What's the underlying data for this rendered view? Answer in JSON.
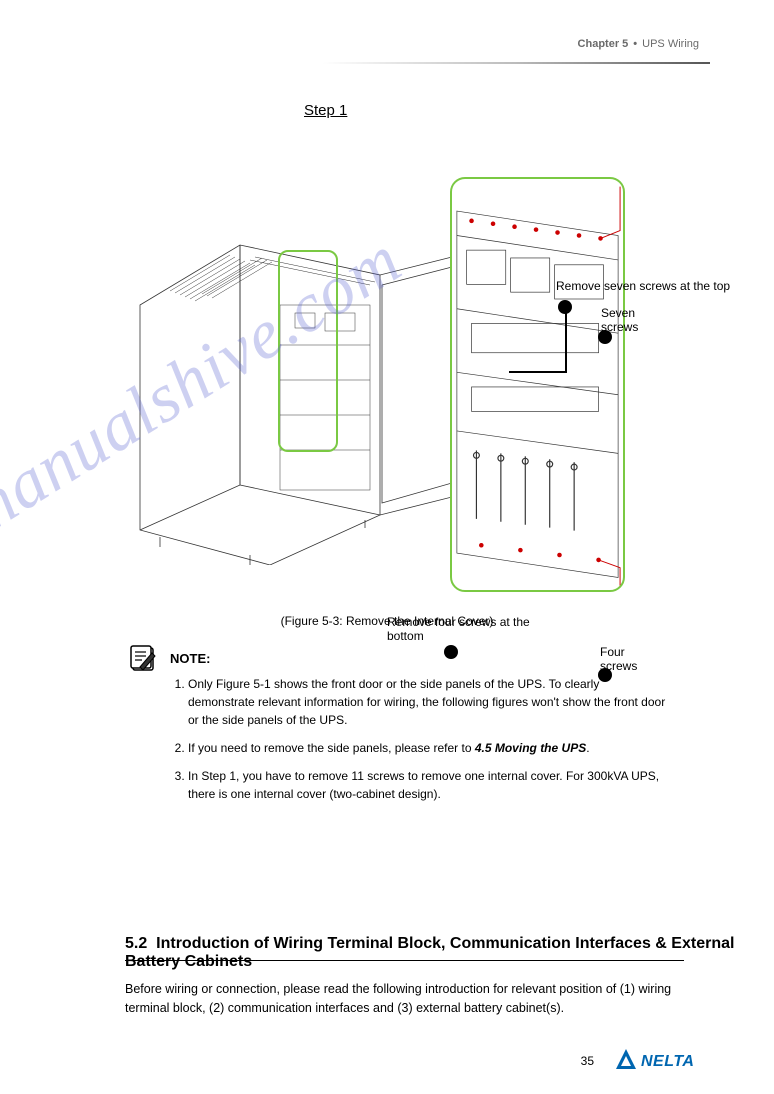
{
  "header": {
    "chapter_label": "Chapter 5",
    "chapter_title": "UPS Wiring"
  },
  "step1": {
    "title": "Step 1",
    "callouts": {
      "c1": "Remove seven screws at the top",
      "c2": "Seven screws",
      "c3": "Remove four screws at the bottom",
      "c4": "Four screws"
    },
    "figure_caption": "(Figure 5-3: Remove the Internal Cover)"
  },
  "note": {
    "label": "NOTE:",
    "items": [
      "Only Figure 5-1 shows the front door or the side panels of the UPS. To clearly demonstrate relevant information for wiring, the following figures won't show the front door or the side panels of the UPS.",
      "If you need to remove the side panels, please refer to <span class='bold-i'>4.5 Moving the UPS</span>.",
      "In Step 1, you have to remove 11 screws to remove one internal cover. For 300kVA UPS, there is one internal cover (two-cabinet design)."
    ]
  },
  "section52": {
    "number": "5.2",
    "title": "Introduction of Wiring Terminal Block, Communication Interfaces & External Battery Cabinets",
    "body": "Before wiring or connection, please read the following introduction for relevant position of (1) wiring terminal block, (2) communication interfaces and (3) external battery cabinet(s)."
  },
  "footer": {
    "page_number": "35"
  },
  "watermark": "manualshive.com",
  "colors": {
    "highlight_green": "#7ac943",
    "text_gray": "#6a6a6a",
    "watermark": "rgba(90,100,210,0.30)",
    "delta_blue": "#0066b0"
  }
}
